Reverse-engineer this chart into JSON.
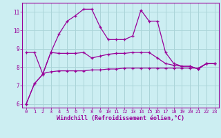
{
  "xlabel": "Windchill (Refroidissement éolien,°C)",
  "background_color": "#cceef2",
  "grid_color": "#aad4d8",
  "line_color": "#990099",
  "xlim": [
    -0.5,
    23.5
  ],
  "ylim": [
    5.8,
    11.5
  ],
  "yticks": [
    6,
    7,
    8,
    9,
    10,
    11
  ],
  "xticks": [
    0,
    1,
    2,
    3,
    4,
    5,
    6,
    7,
    8,
    9,
    10,
    11,
    12,
    13,
    14,
    15,
    16,
    17,
    18,
    19,
    20,
    21,
    22,
    23
  ],
  "series1_x": [
    0,
    1,
    2,
    3,
    4,
    5,
    6,
    7,
    8,
    9,
    10,
    11,
    12,
    13,
    14,
    15,
    16,
    17,
    18,
    19,
    20,
    21,
    22,
    23
  ],
  "series1_y": [
    6.0,
    7.1,
    7.6,
    8.8,
    9.8,
    10.5,
    10.8,
    11.15,
    11.15,
    10.2,
    9.5,
    9.5,
    9.5,
    9.7,
    11.1,
    10.5,
    10.5,
    8.8,
    8.2,
    8.05,
    8.05,
    7.9,
    8.2,
    8.2
  ],
  "series2_x": [
    0,
    1,
    2,
    3,
    4,
    5,
    6,
    7,
    8,
    9,
    10,
    11,
    12,
    13,
    14,
    15,
    16,
    17,
    18,
    19,
    20,
    21,
    22,
    23
  ],
  "series2_y": [
    8.8,
    8.8,
    7.65,
    7.75,
    7.8,
    7.8,
    7.8,
    7.8,
    7.85,
    7.85,
    7.9,
    7.9,
    7.95,
    7.95,
    7.95,
    7.95,
    7.95,
    7.95,
    7.95,
    7.95,
    7.95,
    7.95,
    8.2,
    8.2
  ],
  "series3_x": [
    0,
    1,
    2,
    3,
    4,
    5,
    6,
    7,
    8,
    9,
    10,
    11,
    12,
    13,
    14,
    15,
    16,
    17,
    18,
    19,
    20,
    21,
    22,
    23
  ],
  "series3_y": [
    6.0,
    7.1,
    7.6,
    8.8,
    8.75,
    8.75,
    8.75,
    8.8,
    8.5,
    8.6,
    8.7,
    8.75,
    8.75,
    8.8,
    8.8,
    8.8,
    8.5,
    8.2,
    8.1,
    8.05,
    8.05,
    7.9,
    8.2,
    8.2
  ]
}
